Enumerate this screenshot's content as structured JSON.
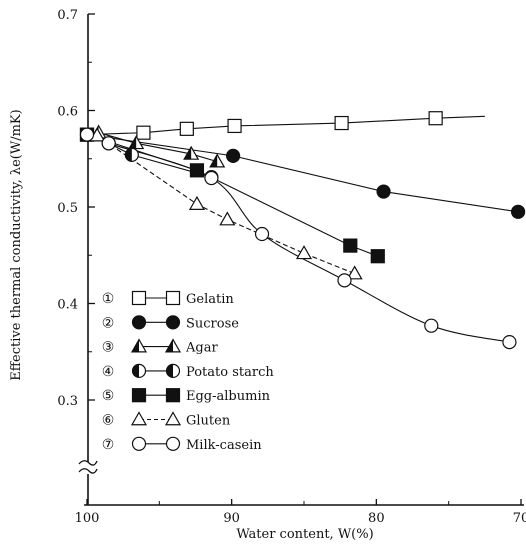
{
  "chart_data": {
    "type": "scatter",
    "xlabel": "Water content, W(%)",
    "ylabel": "Effective thermal conductivity, λe(W/mK)",
    "xlim": [
      100,
      70
    ],
    "ylim": [
      0.3,
      0.7
    ],
    "x_ticks": [
      "100",
      "90",
      "80",
      "70"
    ],
    "y_ticks": [
      "0.3",
      "0.4",
      "0.5",
      "0.6",
      "0.7"
    ],
    "grid": false,
    "legend_position": "bottom-left",
    "series": [
      {
        "index": "①",
        "name": "Gelatin",
        "marker": "square-open",
        "line": "solid",
        "points": [
          [
            100,
            0.575
          ],
          [
            96.1,
            0.577
          ],
          [
            93.1,
            0.581
          ],
          [
            89.8,
            0.584
          ],
          [
            82.4,
            0.587
          ],
          [
            75.9,
            0.592
          ]
        ],
        "trend_end": [
          72.5,
          0.594
        ]
      },
      {
        "index": "②",
        "name": "Sucrose",
        "marker": "circle-filled",
        "line": "solid",
        "points": [
          [
            100,
            0.575
          ],
          [
            89.9,
            0.553
          ],
          [
            79.5,
            0.516
          ],
          [
            70.2,
            0.495
          ]
        ],
        "trend_end": null
      },
      {
        "index": "③",
        "name": "Agar",
        "marker": "triangle-half",
        "line": "solid",
        "points": [
          [
            99.2,
            0.577
          ],
          [
            96.6,
            0.566
          ],
          [
            92.8,
            0.555
          ],
          [
            91.0,
            0.547
          ]
        ],
        "trend_end": null
      },
      {
        "index": "④",
        "name": "Potato starch",
        "marker": "circle-half",
        "line": "solid",
        "points": [
          [
            100,
            0.575
          ],
          [
            98.5,
            0.566
          ],
          [
            96.9,
            0.554
          ],
          [
            91.4,
            0.531
          ]
        ],
        "trend_end": null
      },
      {
        "index": "⑤",
        "name": "Egg-albumin",
        "marker": "square-filled",
        "line": "solid",
        "points": [
          [
            100,
            0.575
          ],
          [
            92.4,
            0.538
          ],
          [
            81.8,
            0.46
          ],
          [
            79.9,
            0.449
          ]
        ],
        "trend_end": null
      },
      {
        "index": "⑥",
        "name": "Gluten",
        "marker": "triangle-open",
        "line": "dashed",
        "points": [
          [
            99.3,
            0.574
          ],
          [
            92.4,
            0.503
          ],
          [
            90.3,
            0.487
          ],
          [
            85.0,
            0.452
          ],
          [
            81.5,
            0.431
          ]
        ],
        "trend_end": null
      },
      {
        "index": "⑦",
        "name": "Milk-casein",
        "marker": "circle-open",
        "line": "solid",
        "points": [
          [
            100,
            0.575
          ],
          [
            98.5,
            0.566
          ],
          [
            91.4,
            0.53
          ],
          [
            87.9,
            0.472
          ],
          [
            82.2,
            0.424
          ],
          [
            76.2,
            0.377
          ],
          [
            70.8,
            0.36
          ]
        ],
        "trend_end": null
      }
    ]
  }
}
